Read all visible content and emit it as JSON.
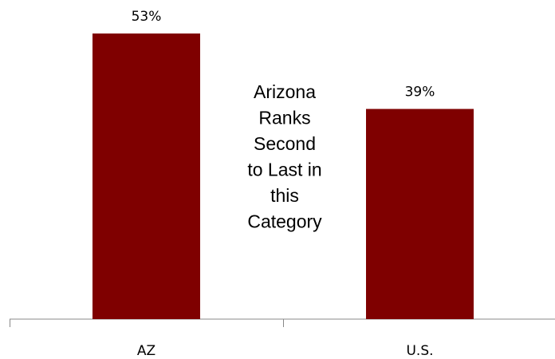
{
  "chart_data": {
    "type": "bar",
    "categories": [
      "AZ",
      "U.S."
    ],
    "values": [
      53,
      39
    ],
    "value_labels": [
      "53%",
      "39%"
    ],
    "color": "#7f0000",
    "annotation": [
      "Arizona",
      "Ranks",
      "Second",
      "to Last in",
      "this",
      "Category"
    ]
  }
}
